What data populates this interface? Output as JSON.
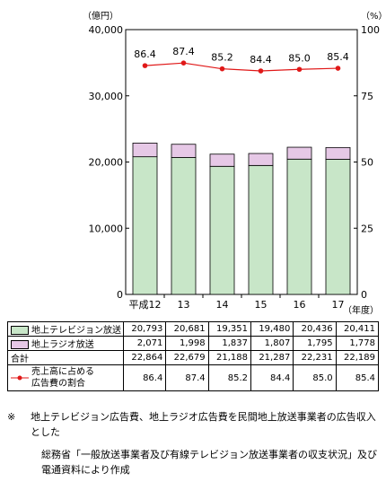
{
  "chart_data": {
    "type": "bar",
    "stacked": true,
    "categories": [
      "平成12",
      "13",
      "14",
      "15",
      "16",
      "17"
    ],
    "series": [
      {
        "name": "地上テレビジョン放送",
        "values": [
          20793,
          20681,
          19351,
          19480,
          20436,
          20411
        ],
        "color": "#c8e6c8"
      },
      {
        "name": "地上ラジオ放送",
        "values": [
          2071,
          1998,
          1837,
          1807,
          1795,
          1778
        ],
        "color": "#e6c8e6"
      }
    ],
    "totals_label": "合計",
    "totals": [
      22864,
      22679,
      21188,
      21287,
      22231,
      22189
    ],
    "line_series": {
      "name": "売上高に占める広告費の割合",
      "name_lines": [
        "売上高に占める",
        "広告費の割合"
      ],
      "values": [
        86.4,
        87.4,
        85.2,
        84.4,
        85.0,
        85.4
      ],
      "color": "#e01818"
    },
    "ylabel_left": "（億円）",
    "ylabel_right": "（%）",
    "xlabel": "（年度）",
    "ylim_left": [
      0,
      40000
    ],
    "yticks_left": [
      "0",
      "10,000",
      "20,000",
      "30,000",
      "40,000"
    ],
    "ylim_right": [
      0,
      100
    ],
    "yticks_right": [
      "0",
      "25",
      "50",
      "75",
      "100"
    ],
    "grid": false
  },
  "table": {
    "rows": [
      {
        "label": "地上テレビジョン放送",
        "values": [
          "20,793",
          "20,681",
          "19,351",
          "19,480",
          "20,436",
          "20,411"
        ]
      },
      {
        "label": "地上ラジオ放送",
        "values": [
          "2,071",
          "1,998",
          "1,837",
          "1,807",
          "1,795",
          "1,778"
        ]
      },
      {
        "label": "合計",
        "values": [
          "22,864",
          "22,679",
          "21,188",
          "21,287",
          "22,231",
          "22,189"
        ]
      },
      {
        "label": "売上高に占める広告費の割合",
        "values": [
          "86.4",
          "87.4",
          "85.2",
          "84.4",
          "85.0",
          "85.4"
        ]
      }
    ]
  },
  "notes": {
    "mark": "※",
    "note": "地上テレビジョン広告費、地上ラジオ広告費を民間地上放送事業者の広告収入とした",
    "source": "総務省「一般放送事業者及び有線テレビジョン放送事業者の収支状況」及び電通資料により作成"
  }
}
